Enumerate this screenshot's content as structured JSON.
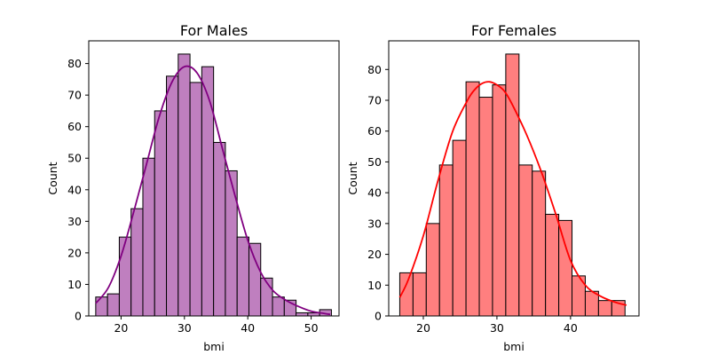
{
  "chart_data": [
    {
      "type": "bar",
      "title": "For Males",
      "xlabel": "bmi",
      "ylabel": "Count",
      "xlim": [
        14.9,
        54.4
      ],
      "ylim": [
        0,
        87.2
      ],
      "xticks": [
        20,
        30,
        40,
        50
      ],
      "yticks": [
        0,
        10,
        20,
        30,
        40,
        50,
        60,
        70,
        80
      ],
      "grid": false,
      "bar_color": "#bf7fbf",
      "kde_color": "#800080",
      "bin_edges": [
        16.0,
        17.86,
        19.72,
        21.58,
        23.44,
        25.3,
        27.16,
        29.02,
        30.88,
        32.74,
        34.6,
        36.46,
        38.32,
        40.18,
        42.04,
        43.9,
        45.76,
        47.62,
        49.48,
        51.34,
        53.2
      ],
      "values": [
        6,
        7,
        25,
        34,
        50,
        65,
        76,
        83,
        74,
        79,
        55,
        46,
        25,
        23,
        12,
        6,
        5,
        1,
        1,
        2
      ],
      "kde": {
        "x": [
          16,
          18,
          20,
          22,
          24,
          26,
          28,
          30,
          32,
          34,
          36,
          38,
          40,
          42,
          44,
          46,
          48,
          50,
          52,
          53
        ],
        "y": [
          4,
          9,
          19,
          33,
          48,
          63,
          74,
          79,
          77,
          68,
          53,
          38,
          24,
          14,
          8,
          5,
          3,
          1.5,
          0.8,
          0.5
        ]
      }
    },
    {
      "type": "bar",
      "title": "For Females",
      "xlabel": "bmi",
      "ylabel": "Count",
      "xlim": [
        15.3,
        49.3
      ],
      "ylim": [
        0,
        89.3
      ],
      "xticks": [
        20,
        30,
        40
      ],
      "yticks": [
        0,
        10,
        20,
        30,
        40,
        50,
        60,
        70,
        80
      ],
      "grid": false,
      "bar_color": "#ff7f7f",
      "kde_color": "#ff0000",
      "bin_edges": [
        16.8,
        18.6,
        20.4,
        22.2,
        24.0,
        25.8,
        27.6,
        29.4,
        31.2,
        33.0,
        34.8,
        36.6,
        38.4,
        40.2,
        42.0,
        43.8,
        45.6,
        47.4
      ],
      "values": [
        14,
        14,
        30,
        49,
        57,
        76,
        71,
        75,
        85,
        49,
        47,
        33,
        31,
        13,
        8,
        5,
        5
      ],
      "kde": {
        "x": [
          16.8,
          18,
          20,
          22,
          24,
          26,
          27,
          28,
          29,
          30,
          31,
          32,
          34,
          36,
          38,
          40,
          42,
          44,
          46,
          47.6
        ],
        "y": [
          6,
          12,
          26,
          44,
          60,
          70,
          73.5,
          75.5,
          76,
          75,
          73,
          69,
          59,
          47,
          33,
          18,
          10,
          6.5,
          4.5,
          3.5
        ]
      }
    }
  ]
}
